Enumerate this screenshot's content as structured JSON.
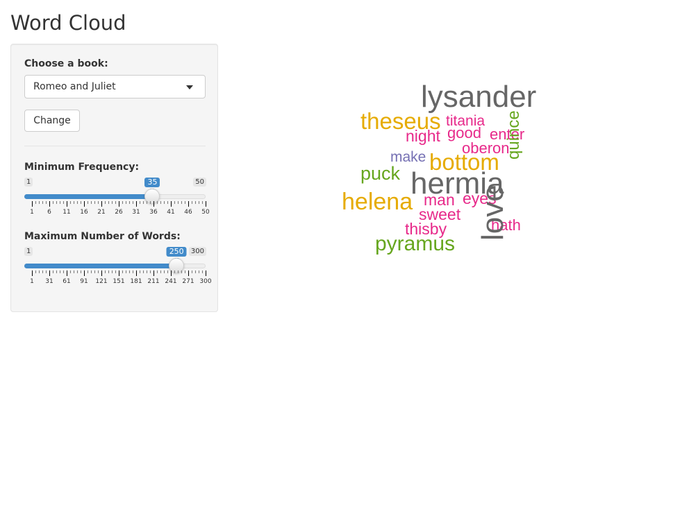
{
  "page": {
    "title": "Word Cloud"
  },
  "sidebar": {
    "book_label": "Choose a book:",
    "book_selected": "Romeo and Juliet",
    "change_button": "Change",
    "freq_slider": {
      "label": "Minimum Frequency:",
      "min": 1,
      "max": 50,
      "value": 35,
      "min_label": "1",
      "max_label": "50",
      "value_label": "35",
      "tick_labels": [
        "1",
        "6",
        "11",
        "16",
        "21",
        "26",
        "31",
        "36",
        "41",
        "46",
        "50"
      ]
    },
    "words_slider": {
      "label": "Maximum Number of Words:",
      "min": 1,
      "max": 300,
      "value": 250,
      "min_label": "1",
      "max_label": "300",
      "value_label": "250",
      "tick_labels": [
        "1",
        "31",
        "61",
        "91",
        "121",
        "151",
        "181",
        "211",
        "241",
        "271",
        "300"
      ]
    }
  },
  "colors": {
    "accent": "#428bca",
    "cloud_gray": "#666666",
    "cloud_gold": "#e6ab02",
    "cloud_pink": "#e7298a",
    "cloud_green": "#66a61e",
    "cloud_purple": "#7570b3"
  },
  "wordcloud": {
    "words": [
      {
        "text": "lysander",
        "color": "#666666"
      },
      {
        "text": "theseus",
        "color": "#e6ab02"
      },
      {
        "text": "titania",
        "color": "#e7298a"
      },
      {
        "text": "night",
        "color": "#e7298a"
      },
      {
        "text": "good",
        "color": "#e7298a"
      },
      {
        "text": "enter",
        "color": "#e7298a"
      },
      {
        "text": "oberon",
        "color": "#e7298a"
      },
      {
        "text": "make",
        "color": "#7570b3"
      },
      {
        "text": "bottom",
        "color": "#e6ab02"
      },
      {
        "text": "puck",
        "color": "#66a61e"
      },
      {
        "text": "quince",
        "color": "#66a61e"
      },
      {
        "text": "hermia",
        "color": "#666666"
      },
      {
        "text": "helena",
        "color": "#e6ab02"
      },
      {
        "text": "man",
        "color": "#e7298a"
      },
      {
        "text": "eyes",
        "color": "#e7298a"
      },
      {
        "text": "sweet",
        "color": "#e7298a"
      },
      {
        "text": "hath",
        "color": "#e7298a"
      },
      {
        "text": "thisby",
        "color": "#e7298a"
      },
      {
        "text": "love",
        "color": "#666666"
      },
      {
        "text": "pyramus",
        "color": "#66a61e"
      }
    ]
  }
}
